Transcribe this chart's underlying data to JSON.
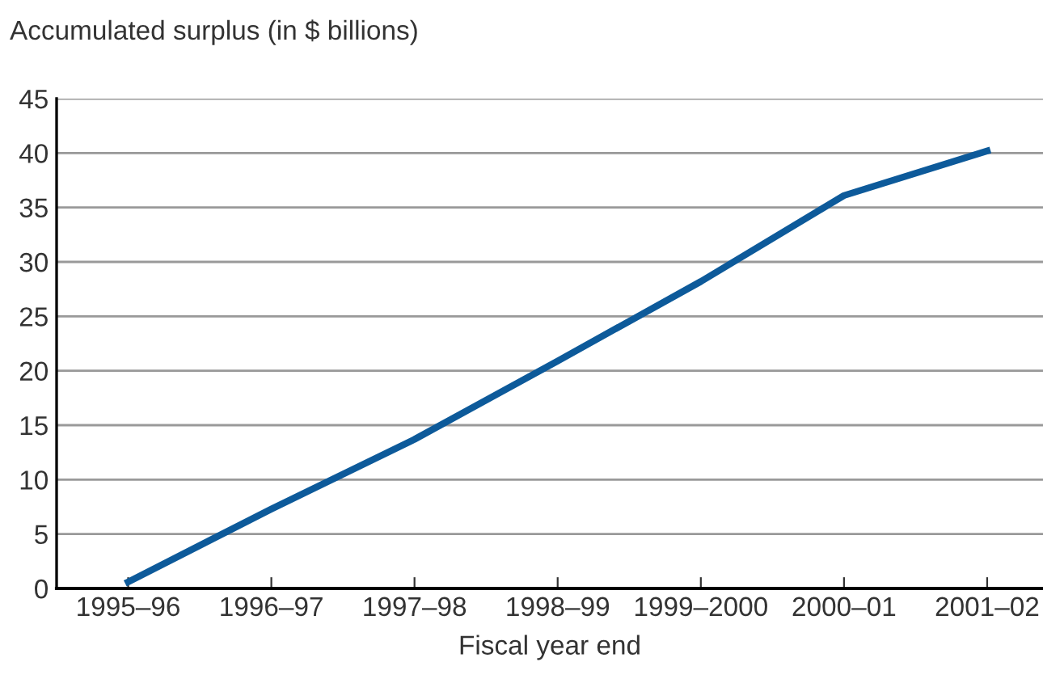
{
  "chart_data": {
    "type": "line",
    "ylabel": "Accumulated surplus (in $ billions)",
    "xlabel": "Fiscal year end",
    "categories": [
      "1995–96",
      "1996–97",
      "1997–98",
      "1998–99",
      "1999–2000",
      "2000–01",
      "2001–02"
    ],
    "series": [
      {
        "color": "#0d5a9a",
        "values": [
          0.6,
          7.3,
          13.7,
          20.9,
          28.2,
          36.1,
          40.2
        ]
      }
    ],
    "ylim": [
      0,
      45
    ],
    "yticks": [
      0,
      5,
      10,
      15,
      20,
      25,
      30,
      35,
      40,
      45
    ],
    "grid": "y",
    "marker": "none",
    "line_style": "solid"
  }
}
